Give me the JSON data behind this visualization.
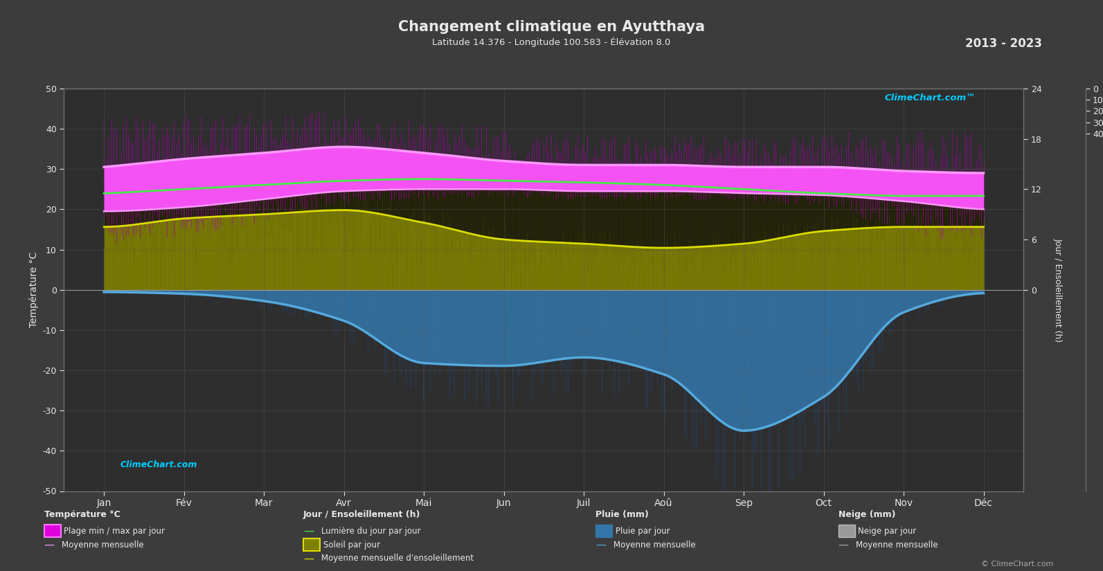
{
  "title": "Changement climatique en Ayutthaya",
  "subtitle": "Latitude 14.376 - Longitude 100.583 - Élévation 8.0",
  "year_range": "2013 - 2023",
  "bg_color": "#3c3c3c",
  "plot_bg_color": "#2e2e2e",
  "grid_color": "#555555",
  "text_color": "#e8e8e8",
  "months": [
    "Jan",
    "Fév",
    "Mar",
    "Avr",
    "Mai",
    "Jun",
    "Juil",
    "Aoû",
    "Sep",
    "Oct",
    "Nov",
    "Déc"
  ],
  "ylim_left": [
    -50,
    50
  ],
  "yticks_left": [
    -50,
    -40,
    -30,
    -20,
    -10,
    0,
    10,
    20,
    30,
    40,
    50
  ],
  "right1_ticks": [
    0,
    6,
    12,
    18,
    24
  ],
  "right2_ticks": [
    0,
    10,
    20,
    30,
    40
  ],
  "temp_min_mean": [
    19.5,
    20.5,
    22.5,
    24.5,
    25.0,
    25.0,
    24.5,
    24.5,
    24.0,
    23.5,
    22.0,
    20.0
  ],
  "temp_max_mean": [
    30.5,
    32.5,
    34.0,
    35.5,
    34.0,
    32.0,
    31.0,
    31.0,
    30.5,
    30.5,
    29.5,
    29.0
  ],
  "temp_min_abs": [
    11.0,
    13.0,
    17.0,
    21.0,
    22.5,
    23.0,
    22.5,
    22.5,
    22.0,
    20.0,
    15.0,
    11.0
  ],
  "temp_max_abs": [
    43.0,
    43.5,
    44.5,
    44.5,
    42.5,
    40.5,
    39.0,
    38.5,
    38.0,
    39.5,
    39.5,
    39.5
  ],
  "sunshine_hours": [
    7.5,
    8.5,
    9.0,
    9.5,
    8.0,
    6.0,
    5.5,
    5.0,
    5.5,
    7.0,
    7.5,
    7.5
  ],
  "daylight_hours": [
    11.5,
    12.0,
    12.5,
    13.0,
    13.2,
    13.0,
    12.8,
    12.5,
    12.0,
    11.5,
    11.2,
    11.2
  ],
  "rain_mm": [
    4.0,
    7.0,
    20.0,
    55.0,
    130.0,
    135.0,
    120.0,
    150.0,
    250.0,
    190.0,
    40.0,
    6.0
  ],
  "rain_scale": 0.1,
  "sunshine_scale": 2.0833,
  "temp_abs_color": "#cc00cc",
  "temp_mean_color": "#ff55ff",
  "temp_mean_line_color": "#ff99ff",
  "sunshine_fill_color": "#808000",
  "sunshine_line_color": "#dddd00",
  "daylight_line_color": "#44ee44",
  "rain_fill_color": "#3377aa",
  "rain_line_color": "#55aadd",
  "snow_fill_color": "#888888"
}
